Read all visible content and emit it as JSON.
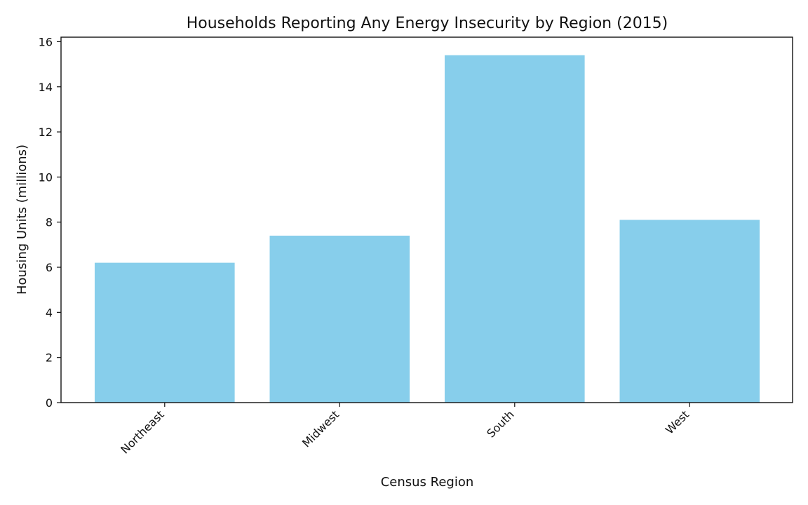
{
  "chart_data": {
    "type": "bar",
    "title": "Households Reporting Any Energy Insecurity by Region (2015)",
    "xlabel": "Census Region",
    "ylabel": "Housing Units (millions)",
    "categories": [
      "Northeast",
      "Midwest",
      "South",
      "West"
    ],
    "values": [
      6.2,
      7.4,
      15.4,
      8.1
    ],
    "ylim": [
      0,
      16.2
    ],
    "yticks": [
      0,
      2,
      4,
      6,
      8,
      10,
      12,
      14,
      16
    ],
    "bar_color": "#87CEEB",
    "grid": false,
    "x_tick_rotation_deg": 45
  }
}
